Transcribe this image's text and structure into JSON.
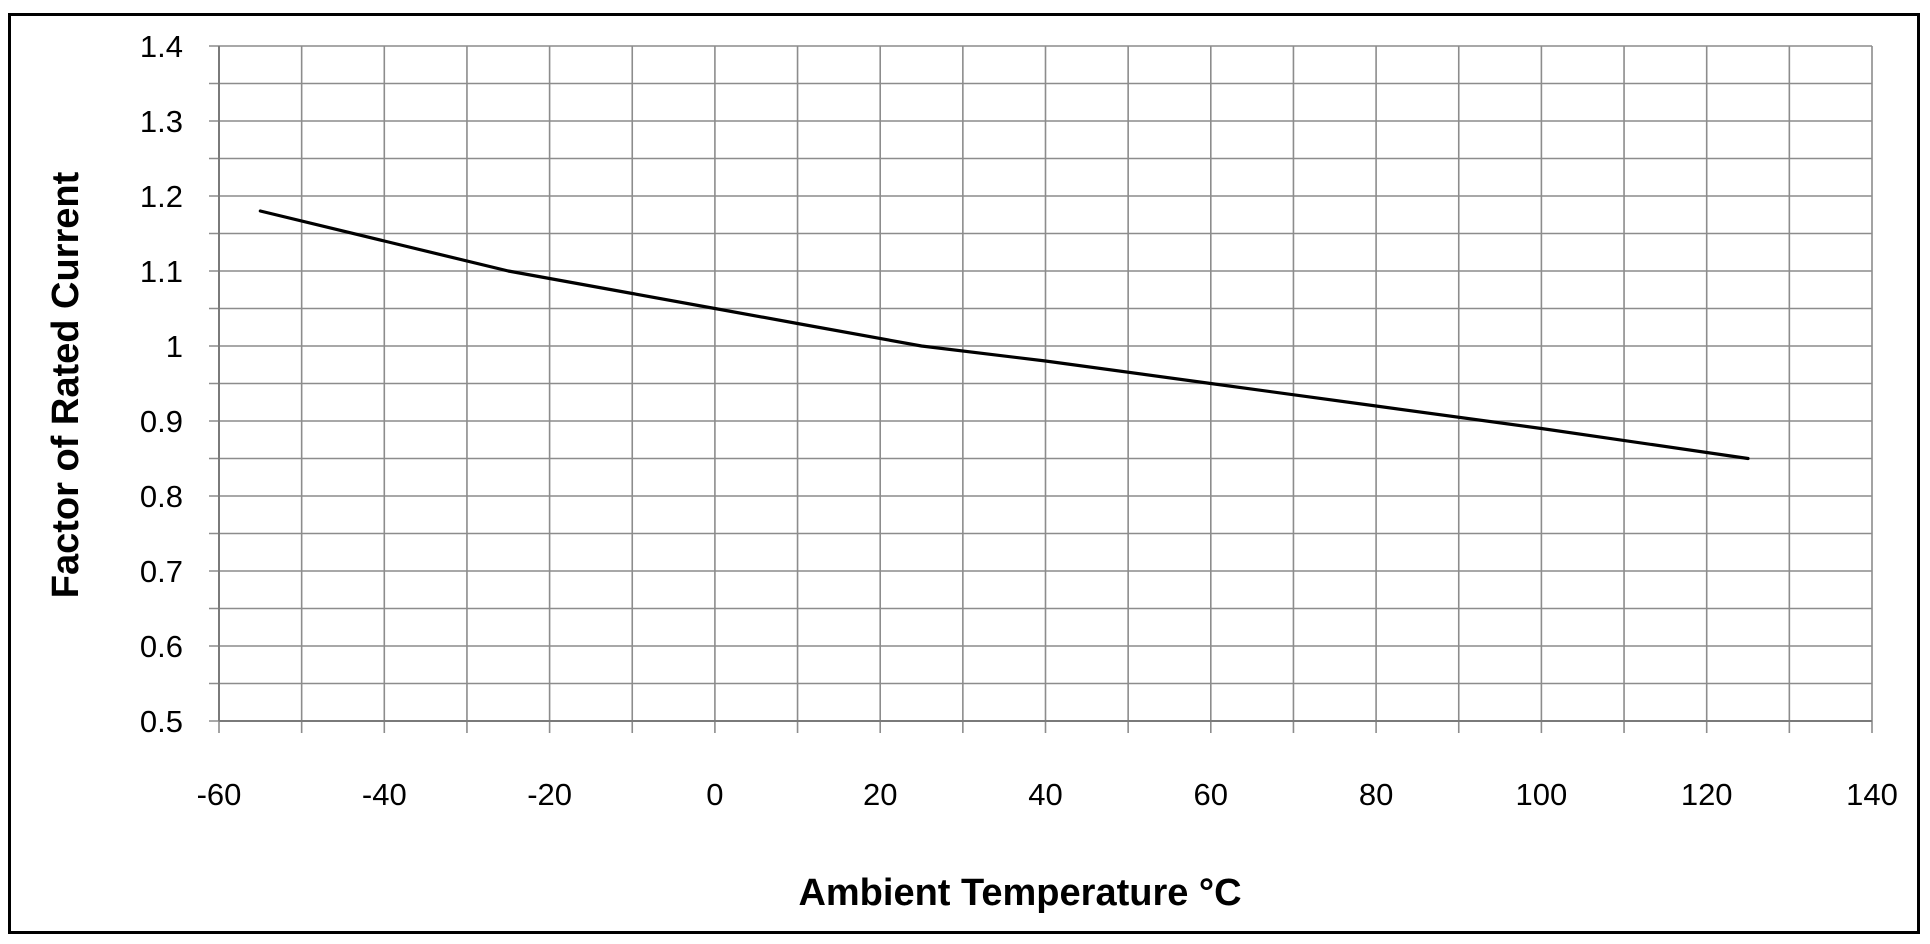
{
  "chart_data": {
    "type": "line",
    "title": "",
    "xlabel": "Ambient Temperature °C",
    "ylabel": "Factor of Rated Current",
    "xlim": [
      -60,
      140
    ],
    "ylim": [
      0.5,
      1.4
    ],
    "x_ticks": [
      -60,
      -40,
      -20,
      0,
      20,
      40,
      60,
      80,
      100,
      120,
      140
    ],
    "x_tick_labels": [
      "-60",
      "-40",
      "-20",
      "0",
      "20",
      "40",
      "60",
      "80",
      "100",
      "120",
      "140"
    ],
    "x_minor_step": 10,
    "y_ticks": [
      0.5,
      0.6,
      0.7,
      0.8,
      0.9,
      1.0,
      1.1,
      1.2,
      1.3,
      1.4
    ],
    "y_tick_labels": [
      "0.5",
      "0.6",
      "0.7",
      "0.8",
      "0.9",
      "1",
      "1.1",
      "1.2",
      "1.3",
      "1.4"
    ],
    "y_minor_step": 0.05,
    "grid": true,
    "legend": "none",
    "series": [
      {
        "x": [
          -55,
          -40,
          -25,
          -10,
          0,
          10,
          25,
          40,
          60,
          80,
          100,
          125
        ],
        "y": [
          1.18,
          1.14,
          1.1,
          1.07,
          1.05,
          1.03,
          1.0,
          0.98,
          0.95,
          0.92,
          0.89,
          0.85
        ],
        "color": "#000000"
      }
    ],
    "colors": {
      "grid": "#8c8c8c",
      "line": "#000000",
      "frame": "#000000"
    }
  }
}
